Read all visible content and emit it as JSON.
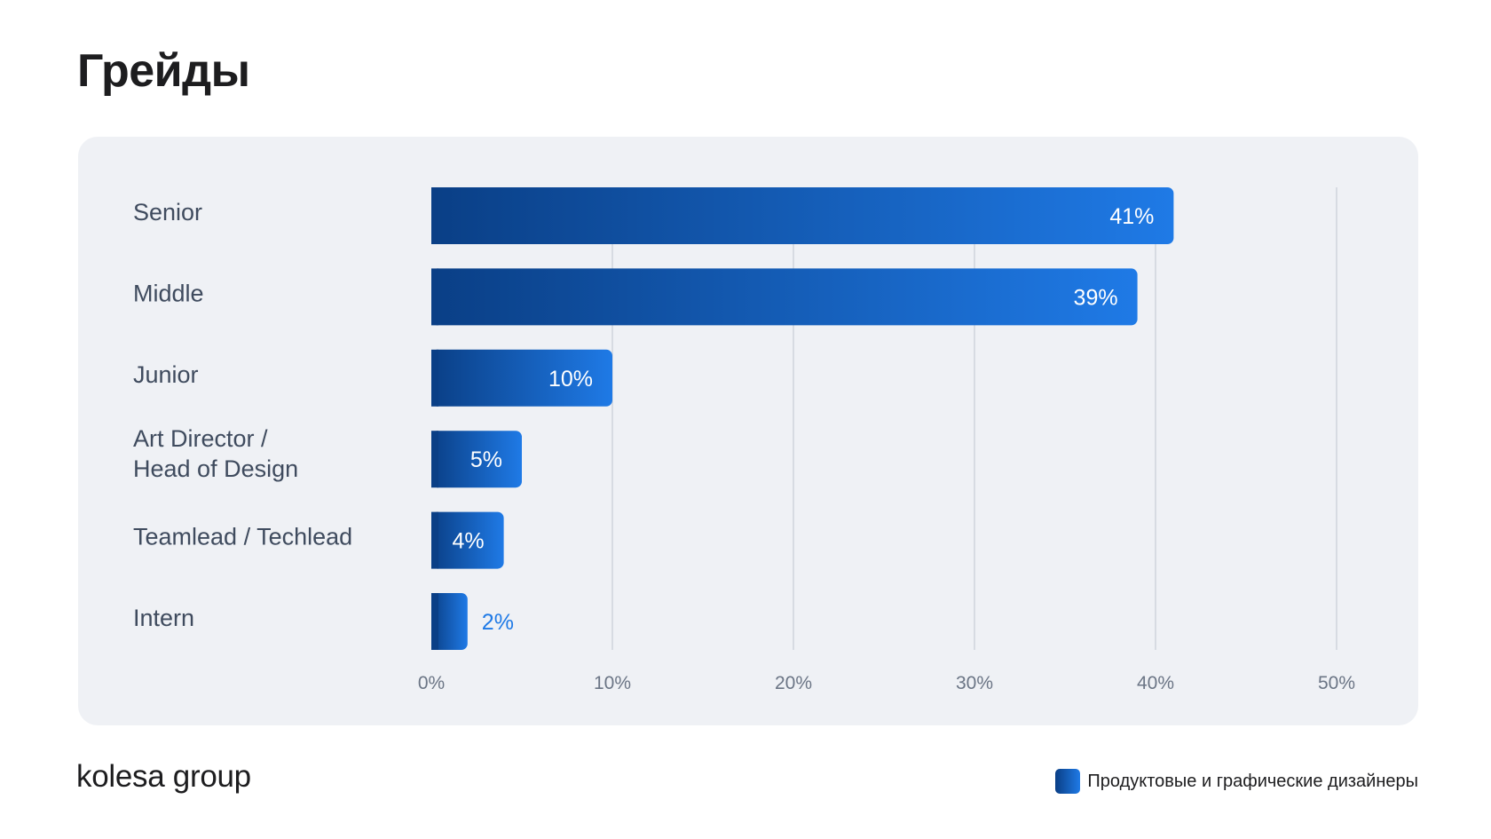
{
  "page": {
    "title": "Грейды",
    "logo_text": "kolesa group"
  },
  "legend": {
    "label": "Продуктовые и графические дизайнеры"
  },
  "colors": {
    "bar_start": "#0a3f86",
    "bar_end": "#1f7ae6",
    "label_text": "#3f4b5e",
    "outside_value": "#1f7ae6",
    "grid": "#cfd4dc",
    "background_card": "#eff1f5"
  },
  "chart_data": {
    "type": "bar",
    "orientation": "horizontal",
    "categories": [
      "Senior",
      "Middle",
      "Junior",
      "Art Director /\nHead of Design",
      "Teamlead / Techlead",
      "Intern"
    ],
    "values": [
      41,
      39,
      10,
      5,
      4,
      2
    ],
    "value_labels": [
      "41%",
      "39%",
      "10%",
      "5%",
      "4%",
      "2%"
    ],
    "xlim": [
      0,
      50
    ],
    "x_ticks": [
      0,
      10,
      20,
      30,
      40,
      50
    ],
    "x_tick_labels": [
      "0%",
      "10%",
      "20%",
      "30%",
      "40%",
      "50%"
    ],
    "grid": true,
    "legend_position": "bottom-right"
  }
}
